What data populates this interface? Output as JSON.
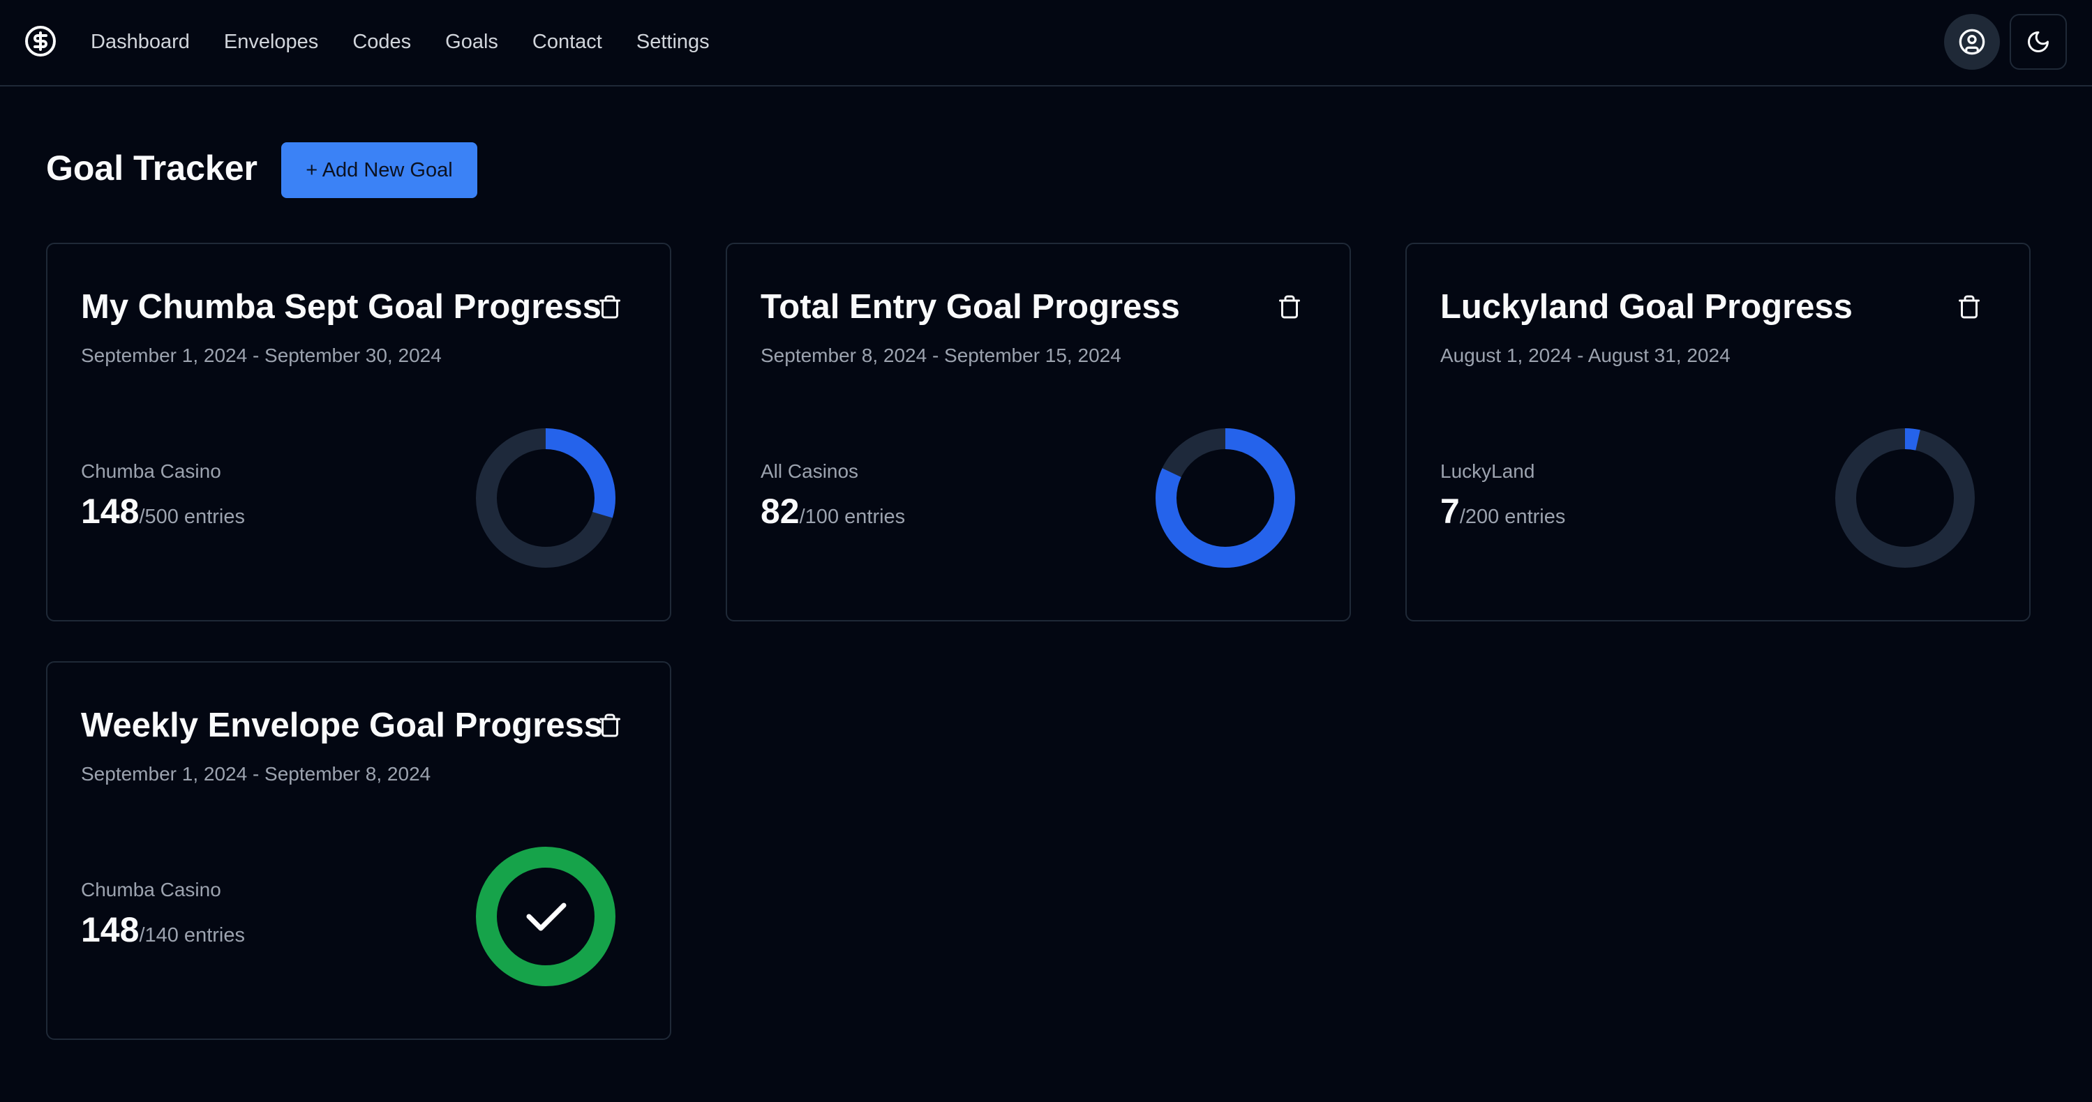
{
  "app": {
    "logo_icon": "dollar-circle-icon"
  },
  "nav": {
    "items": [
      {
        "label": "Dashboard"
      },
      {
        "label": "Envelopes"
      },
      {
        "label": "Codes"
      },
      {
        "label": "Goals"
      },
      {
        "label": "Contact"
      },
      {
        "label": "Settings"
      }
    ],
    "user_icon": "user-circle-icon",
    "theme_icon": "moon-icon"
  },
  "page": {
    "title": "Goal Tracker",
    "add_label": "+ Add New Goal"
  },
  "colors": {
    "accent": "#3b82f6",
    "progress": "#2563eb",
    "track": "#1e293b",
    "complete": "#16a34a"
  },
  "goals": [
    {
      "title": "My Chumba Sept Goal Progress",
      "date_range": "September 1, 2024 - September 30, 2024",
      "source": "Chumba Casino",
      "current": "148",
      "target_text": "/500 entries",
      "progress_fraction": 0.296,
      "completed": false
    },
    {
      "title": "Total Entry Goal Progress",
      "date_range": "September 8, 2024 - September 15, 2024",
      "source": "All Casinos",
      "current": "82",
      "target_text": "/100 entries",
      "progress_fraction": 0.82,
      "completed": false
    },
    {
      "title": "Luckyland Goal Progress",
      "date_range": "August 1, 2024 - August 31, 2024",
      "source": "LuckyLand",
      "current": "7",
      "target_text": "/200 entries",
      "progress_fraction": 0.035,
      "completed": false
    },
    {
      "title": "Weekly Envelope Goal Progress",
      "date_range": "September 1, 2024 - September 8, 2024",
      "source": "Chumba Casino",
      "current": "148",
      "target_text": "/140 entries",
      "progress_fraction": 1,
      "completed": true
    }
  ]
}
